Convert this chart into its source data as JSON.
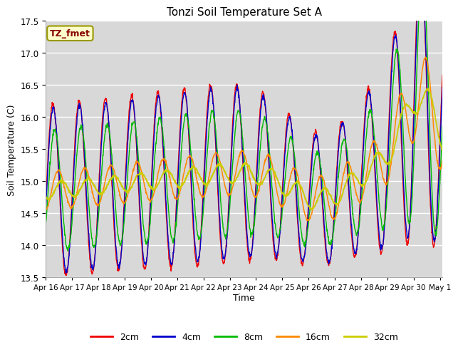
{
  "title": "Tonzi Soil Temperature Set A",
  "xlabel": "Time",
  "ylabel": "Soil Temperature (C)",
  "ylim": [
    13.5,
    17.5
  ],
  "plot_bg_color": "#d8d8d8",
  "grid_color": "#ffffff",
  "colors": {
    "2cm": "#ee0000",
    "4cm": "#0000cc",
    "8cm": "#00bb00",
    "16cm": "#ff8800",
    "32cm": "#cccc00"
  },
  "label_box_facecolor": "#ffffcc",
  "label_box_edgecolor": "#999900",
  "label_text": "TZ_fmet",
  "label_text_color": "#880000",
  "xtick_labels": [
    "Apr 16",
    "Apr 17",
    "Apr 18",
    "Apr 19",
    "Apr 20",
    "Apr 21",
    "Apr 22",
    "Apr 23",
    "Apr 24",
    "Apr 25",
    "Apr 26",
    "Apr 27",
    "Apr 28",
    "Apr 29",
    "Apr 30",
    "May 1"
  ],
  "points_per_day": 96
}
